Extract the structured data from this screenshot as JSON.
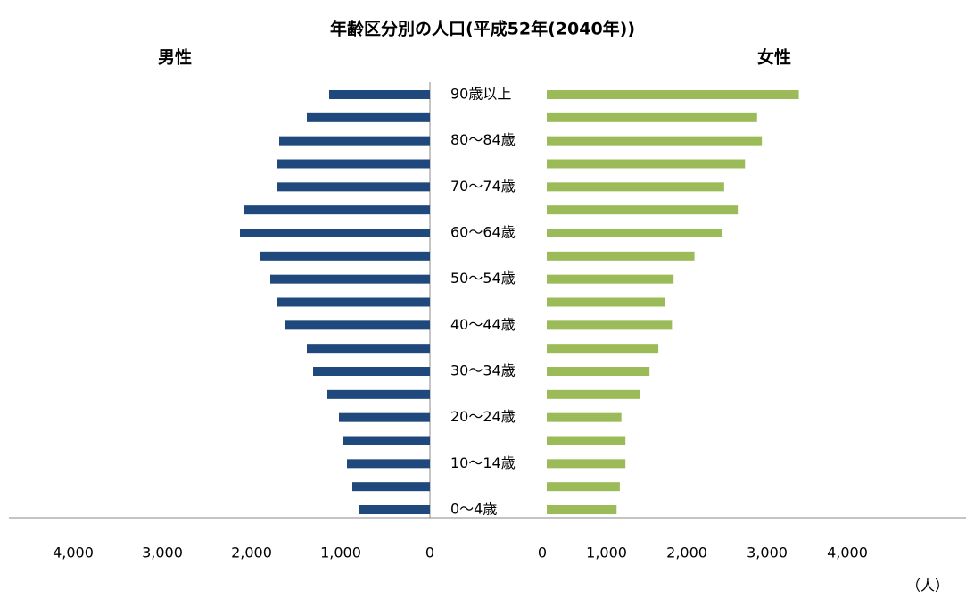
{
  "chart_data": {
    "type": "pyramid",
    "title": "年齢区分別の人口(平成52年(2040年))",
    "unit_label": "（人）",
    "categories": [
      "0〜4歳",
      null,
      "10〜14歳",
      null,
      "20〜24歳",
      null,
      "30〜34歳",
      null,
      "40〜44歳",
      null,
      "50〜54歳",
      null,
      "60〜64歳",
      null,
      "70〜74歳",
      null,
      "80〜84歳",
      null,
      "90歳以上"
    ],
    "series": [
      {
        "name": "男性",
        "color": "#1f497d",
        "side": "left",
        "values": [
          790,
          870,
          930,
          980,
          1020,
          1150,
          1310,
          1380,
          1630,
          1710,
          1790,
          1900,
          2130,
          2090,
          1710,
          1710,
          1690,
          1380,
          1130
        ],
        "xlim": [
          0,
          4720
        ],
        "xticks": [
          0,
          {
            "value": 1000,
            "label": "1,000"
          },
          {
            "value": 2000,
            "label": "2,000"
          },
          {
            "value": 3000,
            "label": "3,000"
          },
          {
            "value": 4000,
            "label": "4,000"
          }
        ]
      },
      {
        "name": "女性",
        "color": "#9bbb59",
        "side": "right",
        "values": [
          870,
          910,
          980,
          980,
          930,
          1160,
          1280,
          1390,
          1560,
          1470,
          1580,
          1840,
          2190,
          2380,
          2210,
          2470,
          2680,
          2620,
          3140
        ],
        "xlim": [
          0,
          5190
        ],
        "xticks": [
          0,
          {
            "value": 1000,
            "label": "1,000"
          },
          {
            "value": 2000,
            "label": "2,000"
          },
          {
            "value": 3000,
            "label": "3,000"
          },
          {
            "value": 4000,
            "label": "4,000"
          }
        ]
      }
    ]
  }
}
